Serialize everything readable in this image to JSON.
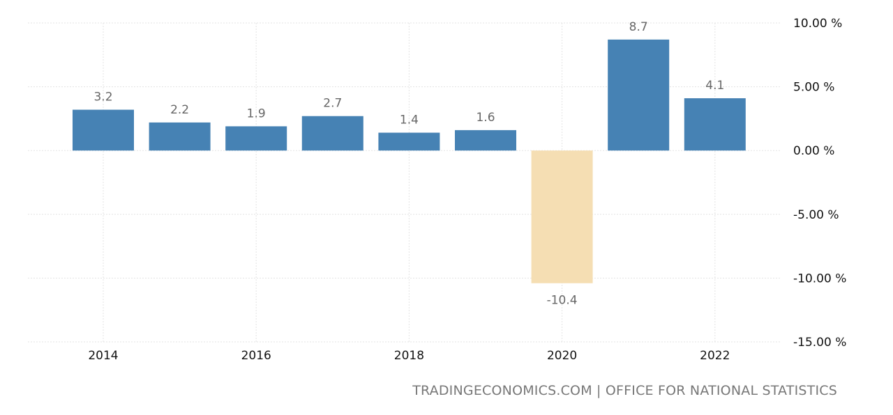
{
  "chart_data": {
    "type": "bar",
    "categories": [
      "2014",
      "2015",
      "2016",
      "2017",
      "2018",
      "2019",
      "2020",
      "2021",
      "2022"
    ],
    "values": [
      3.2,
      2.2,
      1.9,
      2.7,
      1.4,
      1.6,
      -10.4,
      8.7,
      4.1
    ],
    "data_labels": [
      "3.2",
      "2.2",
      "1.9",
      "2.7",
      "1.4",
      "1.6",
      "-10.4",
      "8.7",
      "4.1"
    ],
    "x_tick_labels": [
      "2014",
      "2016",
      "2018",
      "2020",
      "2022"
    ],
    "y_ticks": [
      10,
      5,
      0,
      -5,
      -10,
      -15
    ],
    "y_tick_labels": [
      "10.00 %",
      "5.00 %",
      "0.00 %",
      "-5.00 %",
      "-10.00 %",
      "-15.00 %"
    ],
    "ylim": [
      -15,
      10
    ],
    "title": "",
    "xlabel": "",
    "ylabel": "",
    "grid": true,
    "y_axis_side": "right",
    "colors": {
      "positive": "#4682b4",
      "negative": "#f5deb3",
      "grid": "#e3e3e3"
    }
  },
  "footer": {
    "source": "TRADINGECONOMICS.COM | OFFICE FOR NATIONAL STATISTICS"
  }
}
